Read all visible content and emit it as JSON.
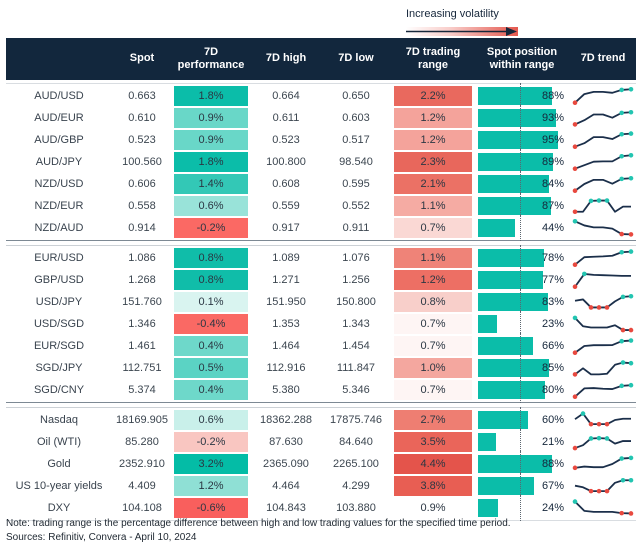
{
  "volatility_legend": {
    "label": "Increasing volatility"
  },
  "colors": {
    "header_bg": "#12273d",
    "header_text": "#ffffff",
    "bar_teal": "#0bbda9",
    "spark_line": "#1b2f4a",
    "spark_dot_red": "#e8493f",
    "spark_dot_teal": "#22c5b1",
    "strong_teal": "#0bbda9",
    "strong_red": "#e4544b"
  },
  "chart_data": {
    "type": "table",
    "title": "",
    "columns": {
      "instrument": "",
      "spot": "Spot",
      "perf_line1": "7D",
      "perf_line2": "performance",
      "high": "7D high",
      "low": "7D low",
      "range_line1": "7D trading",
      "range_line2": "range",
      "pos_line1": "Spot position",
      "pos_line2": "within range",
      "trend": "7D trend"
    },
    "position_axis": {
      "midline_pct": 50
    },
    "groups": [
      {
        "rows": [
          {
            "label": "AUD/USD",
            "spot": "0.663",
            "perf": "1.8%",
            "perf_bg": "#0bbda9",
            "high": "0.664",
            "low": "0.650",
            "range": "2.2%",
            "range_bg": "#e9695e",
            "pos_pct": 88,
            "pos_label": "88%",
            "trend": {
              "y": [
                8,
                62,
                76,
                76,
                70,
                88,
                92
              ],
              "dots": [
                [
                  0,
                  "red"
                ],
                [
                  5,
                  "teal"
                ],
                [
                  6,
                  "teal"
                ]
              ]
            }
          },
          {
            "label": "AUD/EUR",
            "spot": "0.610",
            "perf": "0.9%",
            "perf_bg": "#69d7c8",
            "high": "0.611",
            "low": "0.603",
            "range": "1.2%",
            "range_bg": "#f4a39b",
            "pos_pct": 93,
            "pos_label": "93%",
            "trend": {
              "y": [
                10,
                36,
                72,
                72,
                52,
                82,
                86
              ],
              "dots": [
                [
                  0,
                  "red"
                ],
                [
                  5,
                  "teal"
                ],
                [
                  6,
                  "teal"
                ]
              ]
            }
          },
          {
            "label": "AUD/GBP",
            "spot": "0.523",
            "perf": "0.9%",
            "perf_bg": "#69d7c8",
            "high": "0.523",
            "low": "0.517",
            "range": "1.2%",
            "range_bg": "#f4a39b",
            "pos_pct": 95,
            "pos_label": "95%",
            "trend": {
              "y": [
                8,
                30,
                68,
                68,
                56,
                86,
                90
              ],
              "dots": [
                [
                  0,
                  "red"
                ],
                [
                  5,
                  "teal"
                ],
                [
                  6,
                  "teal"
                ]
              ]
            }
          },
          {
            "label": "AUD/JPY",
            "spot": "100.560",
            "perf": "1.8%",
            "perf_bg": "#0bbda9",
            "high": "100.800",
            "low": "98.540",
            "range": "2.3%",
            "range_bg": "#e8675c",
            "pos_pct": 89,
            "pos_label": "89%",
            "trend": {
              "y": [
                8,
                30,
                52,
                54,
                54,
                86,
                92
              ],
              "dots": [
                [
                  0,
                  "red"
                ],
                [
                  5,
                  "teal"
                ],
                [
                  6,
                  "teal"
                ]
              ]
            }
          },
          {
            "label": "NZD/USD",
            "spot": "0.606",
            "perf": "1.4%",
            "perf_bg": "#33c8b6",
            "high": "0.608",
            "low": "0.595",
            "range": "2.1%",
            "range_bg": "#eb7165",
            "pos_pct": 84,
            "pos_label": "84%",
            "trend": {
              "y": [
                8,
                50,
                76,
                76,
                52,
                82,
                86
              ],
              "dots": [
                [
                  0,
                  "red"
                ],
                [
                  5,
                  "teal"
                ],
                [
                  6,
                  "teal"
                ]
              ]
            }
          },
          {
            "label": "NZD/EUR",
            "spot": "0.558",
            "perf": "0.6%",
            "perf_bg": "#99e3d9",
            "high": "0.559",
            "low": "0.552",
            "range": "1.1%",
            "range_bg": "#f5aba3",
            "pos_pct": 87,
            "pos_label": "87%",
            "trend": {
              "y": [
                14,
                14,
                82,
                84,
                84,
                14,
                46,
                46
              ],
              "dots": [
                [
                  0,
                  "red"
                ],
                [
                  2,
                  "teal"
                ],
                [
                  3,
                  "teal"
                ],
                [
                  4,
                  "teal"
                ]
              ]
            }
          },
          {
            "label": "NZD/AUD",
            "spot": "0.914",
            "perf": "-0.2%",
            "perf_bg": "#fb6964",
            "high": "0.917",
            "low": "0.911",
            "range": "0.7%",
            "range_bg": "#fad8d4",
            "pos_pct": 44,
            "pos_label": "44%",
            "trend": {
              "y": [
                92,
                66,
                54,
                54,
                46,
                12,
                10
              ],
              "dots": [
                [
                  0,
                  "teal"
                ],
                [
                  5,
                  "red"
                ],
                [
                  6,
                  "red"
                ]
              ]
            }
          }
        ]
      },
      {
        "rows": [
          {
            "label": "EUR/USD",
            "spot": "1.086",
            "perf": "0.8%",
            "perf_bg": "#10bda9",
            "high": "1.089",
            "low": "1.076",
            "range": "1.1%",
            "range_bg": "#ef8378",
            "pos_pct": 78,
            "pos_label": "78%",
            "trend": {
              "y": [
                8,
                55,
                58,
                60,
                64,
                86,
                90
              ],
              "dots": [
                [
                  0,
                  "red"
                ],
                [
                  5,
                  "teal"
                ],
                [
                  6,
                  "teal"
                ]
              ]
            }
          },
          {
            "label": "GBP/USD",
            "spot": "1.268",
            "perf": "0.8%",
            "perf_bg": "#10bda9",
            "high": "1.271",
            "low": "1.256",
            "range": "1.2%",
            "range_bg": "#ed6f64",
            "pos_pct": 77,
            "pos_label": "77%",
            "trend": {
              "y": [
                8,
                88,
                82,
                80,
                78,
                76,
                76
              ],
              "dots": [
                [
                  0,
                  "red"
                ],
                [
                  1,
                  "teal"
                ]
              ]
            }
          },
          {
            "label": "USD/JPY",
            "spot": "151.760",
            "perf": "0.1%",
            "perf_bg": "#d9f4f0",
            "high": "151.950",
            "low": "150.800",
            "range": "0.8%",
            "range_bg": "#f8cfca",
            "pos_pct": 83,
            "pos_label": "83%",
            "trend": {
              "y": [
                58,
                66,
                16,
                16,
                16,
                54,
                82,
                86
              ],
              "dots": [
                [
                  2,
                  "red"
                ],
                [
                  3,
                  "red"
                ],
                [
                  4,
                  "red"
                ],
                [
                  6,
                  "teal"
                ],
                [
                  7,
                  "teal"
                ]
              ]
            }
          },
          {
            "label": "USD/SGD",
            "spot": "1.346",
            "perf": "-0.4%",
            "perf_bg": "#fa6964",
            "high": "1.353",
            "low": "1.343",
            "range": "0.7%",
            "range_bg": "#fef5f4",
            "pos_pct": 23,
            "pos_label": "23%",
            "trend": {
              "y": [
                88,
                36,
                28,
                28,
                28,
                42,
                12,
                12
              ],
              "dots": [
                [
                  0,
                  "teal"
                ],
                [
                  6,
                  "red"
                ],
                [
                  7,
                  "red"
                ]
              ]
            }
          },
          {
            "label": "EUR/SGD",
            "spot": "1.461",
            "perf": "0.4%",
            "perf_bg": "#6ed8ca",
            "high": "1.464",
            "low": "1.454",
            "range": "0.7%",
            "range_bg": "#fef5f4",
            "pos_pct": 66,
            "pos_label": "66%",
            "trend": {
              "y": [
                8,
                50,
                55,
                55,
                56,
                80,
                84
              ],
              "dots": [
                [
                  0,
                  "red"
                ],
                [
                  5,
                  "teal"
                ],
                [
                  6,
                  "teal"
                ]
              ]
            }
          },
          {
            "label": "SGD/JPY",
            "spot": "112.751",
            "perf": "0.5%",
            "perf_bg": "#5bd3c4",
            "high": "112.916",
            "low": "111.847",
            "range": "1.0%",
            "range_bg": "#f4a79f",
            "pos_pct": 85,
            "pos_label": "85%",
            "trend": {
              "y": [
                10,
                48,
                10,
                10,
                14,
                70,
                84,
                80
              ],
              "dots": [
                [
                  0,
                  "red"
                ],
                [
                  6,
                  "teal"
                ],
                [
                  7,
                  "teal"
                ]
              ]
            }
          },
          {
            "label": "SGD/CNY",
            "spot": "5.374",
            "perf": "0.4%",
            "perf_bg": "#6ed8ca",
            "high": "5.380",
            "low": "5.346",
            "range": "0.7%",
            "range_bg": "#fef5f4",
            "pos_pct": 80,
            "pos_label": "80%",
            "trend": {
              "y": [
                8,
                60,
                62,
                58,
                56,
                76,
                80
              ],
              "dots": [
                [
                  0,
                  "red"
                ],
                [
                  5,
                  "teal"
                ],
                [
                  6,
                  "teal"
                ]
              ]
            }
          }
        ]
      },
      {
        "rows": [
          {
            "label": "Nasdaq",
            "spot": "18169.905",
            "perf": "0.6%",
            "perf_bg": "#c9f0ea",
            "high": "18362.288",
            "low": "17875.746",
            "range": "2.7%",
            "range_bg": "#ee7e72",
            "pos_pct": 60,
            "pos_label": "60%",
            "trend": {
              "y": [
                55,
                90,
                24,
                24,
                24,
                50,
                58,
                58
              ],
              "dots": [
                [
                  1,
                  "teal"
                ],
                [
                  2,
                  "red"
                ],
                [
                  3,
                  "red"
                ],
                [
                  4,
                  "red"
                ]
              ]
            }
          },
          {
            "label": "Oil (WTI)",
            "spot": "85.280",
            "perf": "-0.2%",
            "perf_bg": "#f9c6c1",
            "high": "87.630",
            "low": "84.640",
            "range": "3.5%",
            "range_bg": "#ea655a",
            "pos_pct": 21,
            "pos_label": "21%",
            "trend": {
              "y": [
                12,
                30,
                72,
                74,
                72,
                40,
                56,
                56
              ],
              "dots": [
                [
                  0,
                  "red"
                ],
                [
                  2,
                  "teal"
                ],
                [
                  3,
                  "teal"
                ],
                [
                  4,
                  "teal"
                ]
              ]
            }
          },
          {
            "label": "Gold",
            "spot": "2352.910",
            "perf": "3.2%",
            "perf_bg": "#04bca6",
            "high": "2365.090",
            "low": "2265.100",
            "range": "4.4%",
            "range_bg": "#e4544b",
            "pos_pct": 88,
            "pos_label": "88%",
            "trend": {
              "y": [
                26,
                34,
                30,
                30,
                50,
                84,
                88
              ],
              "dots": [
                [
                  0,
                  "red"
                ],
                [
                  5,
                  "teal"
                ],
                [
                  6,
                  "teal"
                ]
              ]
            }
          },
          {
            "label": "US 10-year yields",
            "spot": "4.409",
            "perf": "1.2%",
            "perf_bg": "#8fe0d5",
            "high": "4.464",
            "low": "4.299",
            "range": "3.8%",
            "range_bg": "#e85e53",
            "pos_pct": 67,
            "pos_label": "67%",
            "trend": {
              "y": [
                52,
                42,
                18,
                18,
                18,
                70,
                86,
                86
              ],
              "dots": [
                [
                  2,
                  "red"
                ],
                [
                  3,
                  "red"
                ],
                [
                  4,
                  "red"
                ],
                [
                  6,
                  "teal"
                ],
                [
                  7,
                  "teal"
                ]
              ]
            }
          },
          {
            "label": "DXY",
            "spot": "104.108",
            "perf": "-0.6%",
            "perf_bg": "#f95f5d",
            "high": "104.843",
            "low": "103.880",
            "range": "0.9%",
            "range_bg": "#ffffff",
            "pos_pct": 24,
            "pos_label": "24%",
            "trend": {
              "y": [
                90,
                32,
                26,
                26,
                26,
                18,
                16
              ],
              "dots": [
                [
                  0,
                  "teal"
                ],
                [
                  5,
                  "red"
                ],
                [
                  6,
                  "red"
                ]
              ]
            }
          }
        ]
      }
    ]
  },
  "footer": {
    "note": "Note: trading range is the percentage difference between high and low trading values for the specified time period.",
    "sources": "Sources: Refinitiv, Convera - April 10, 2024"
  }
}
